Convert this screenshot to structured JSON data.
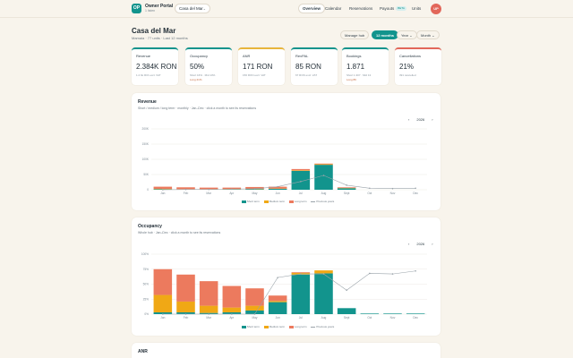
{
  "header": {
    "brand": "Owner Portal",
    "brand_sub": "1 listen",
    "property": "Casa del Mar",
    "nav": [
      {
        "label": "Overview",
        "active": true
      },
      {
        "label": "Calendar"
      },
      {
        "label": "Reservations"
      },
      {
        "label": "Payouts",
        "badge": "BETA"
      },
      {
        "label": "Units"
      }
    ],
    "avatar": "UP",
    "logo": "OP"
  },
  "page": {
    "title": "Casa del Mar",
    "subtitle": "Mamaia · 77 units · Last 12 months"
  },
  "controls": {
    "manage": "Manage hub",
    "range": "12 months",
    "year": "Year",
    "month": "Month"
  },
  "kpis": [
    {
      "label": "Revenue",
      "value": "2.384K RON",
      "sub": "1.2 bk ROI excl. VAT",
      "color": "#12948d"
    },
    {
      "label": "Occupancy",
      "value": "50%",
      "sub": "Short 16% · Mid 13%",
      "sub2": "Long 21%",
      "color": "#12948d"
    },
    {
      "label": "ANR",
      "value": "171 RON",
      "sub": "156 RON excl. VAT",
      "color": "#e8b53c"
    },
    {
      "label": "RevPAL",
      "value": "85 RON",
      "sub": "67 RON excl. VAT",
      "color": "#12948d"
    },
    {
      "label": "Bookings",
      "value": "1.871",
      "sub": "Short 1.307 · Mid 13",
      "sub2": "Long 89",
      "color": "#12948d"
    },
    {
      "label": "Cancellations",
      "value": "21%",
      "sub": "391 cancelled",
      "color": "#e2675a"
    }
  ],
  "revenue_panel": {
    "title": "Revenue",
    "subtitle": "Short / medium / long term · monthly · Jan–Dec · click a month to see its reservations",
    "year": "2026",
    "prev": "‹",
    "next": "›"
  },
  "occupancy_panel": {
    "title": "Occupancy",
    "subtitle": "Whole hub · Jan–Dec · click a month to see its reservations",
    "year": "2026",
    "prev": "‹",
    "next": "›"
  },
  "anr_panel": {
    "title": "ANR"
  },
  "colors": {
    "short": "#12948d",
    "mid": "#f0a815",
    "long": "#ec7a5e",
    "prev": "#9aa3aa"
  },
  "chart_data": [
    {
      "type": "bar",
      "title": "Revenue",
      "categories": [
        "Jan",
        "Feb",
        "Mar",
        "Apr",
        "May",
        "Jun",
        "Jul",
        "Aug",
        "Sept",
        "Oct",
        "Nov",
        "Dec"
      ],
      "series": [
        {
          "name": "Short term",
          "values": [
            2000,
            1000,
            1000,
            1000,
            2000,
            3000,
            62000,
            82000,
            5000,
            0,
            0,
            0
          ]
        },
        {
          "name": "Medium term",
          "values": [
            1000,
            1000,
            1000,
            1000,
            1000,
            1000,
            2000,
            2000,
            1000,
            0,
            0,
            0
          ]
        },
        {
          "name": "Long term",
          "values": [
            7000,
            6000,
            5000,
            5000,
            6000,
            6000,
            4000,
            2000,
            2000,
            0,
            0,
            0
          ]
        },
        {
          "name": "Previous years",
          "values": [
            0,
            1000,
            1000,
            2000,
            3000,
            10000,
            27000,
            47000,
            15000,
            5000,
            4000,
            5000
          ]
        }
      ],
      "yticks": [
        "0",
        "50K",
        "100K",
        "150K",
        "200K"
      ],
      "ylim": [
        0,
        200000
      ]
    },
    {
      "type": "bar",
      "title": "Occupancy",
      "categories": [
        "Jan",
        "Feb",
        "Mar",
        "Apr",
        "May",
        "Jun",
        "Jul",
        "Aug",
        "Sept",
        "Oct",
        "Nov",
        "Dec"
      ],
      "series": [
        {
          "name": "Short term",
          "values": [
            3,
            3,
            2,
            3,
            6,
            20,
            66,
            68,
            10,
            1,
            1,
            1
          ]
        },
        {
          "name": "Medium term",
          "values": [
            29,
            18,
            12,
            8,
            8,
            2,
            3,
            5,
            0,
            0,
            0,
            0
          ]
        },
        {
          "name": "Long term",
          "values": [
            43,
            45,
            41,
            36,
            29,
            9,
            1,
            0,
            0,
            0,
            0,
            0
          ]
        },
        {
          "name": "Previous years",
          "values": [
            0,
            0,
            0,
            0,
            0,
            61,
            67,
            67,
            40,
            68,
            67,
            72
          ]
        }
      ],
      "yticks": [
        "0%",
        "25%",
        "50%",
        "75%",
        "100%"
      ],
      "ylim": [
        0,
        100
      ]
    }
  ]
}
